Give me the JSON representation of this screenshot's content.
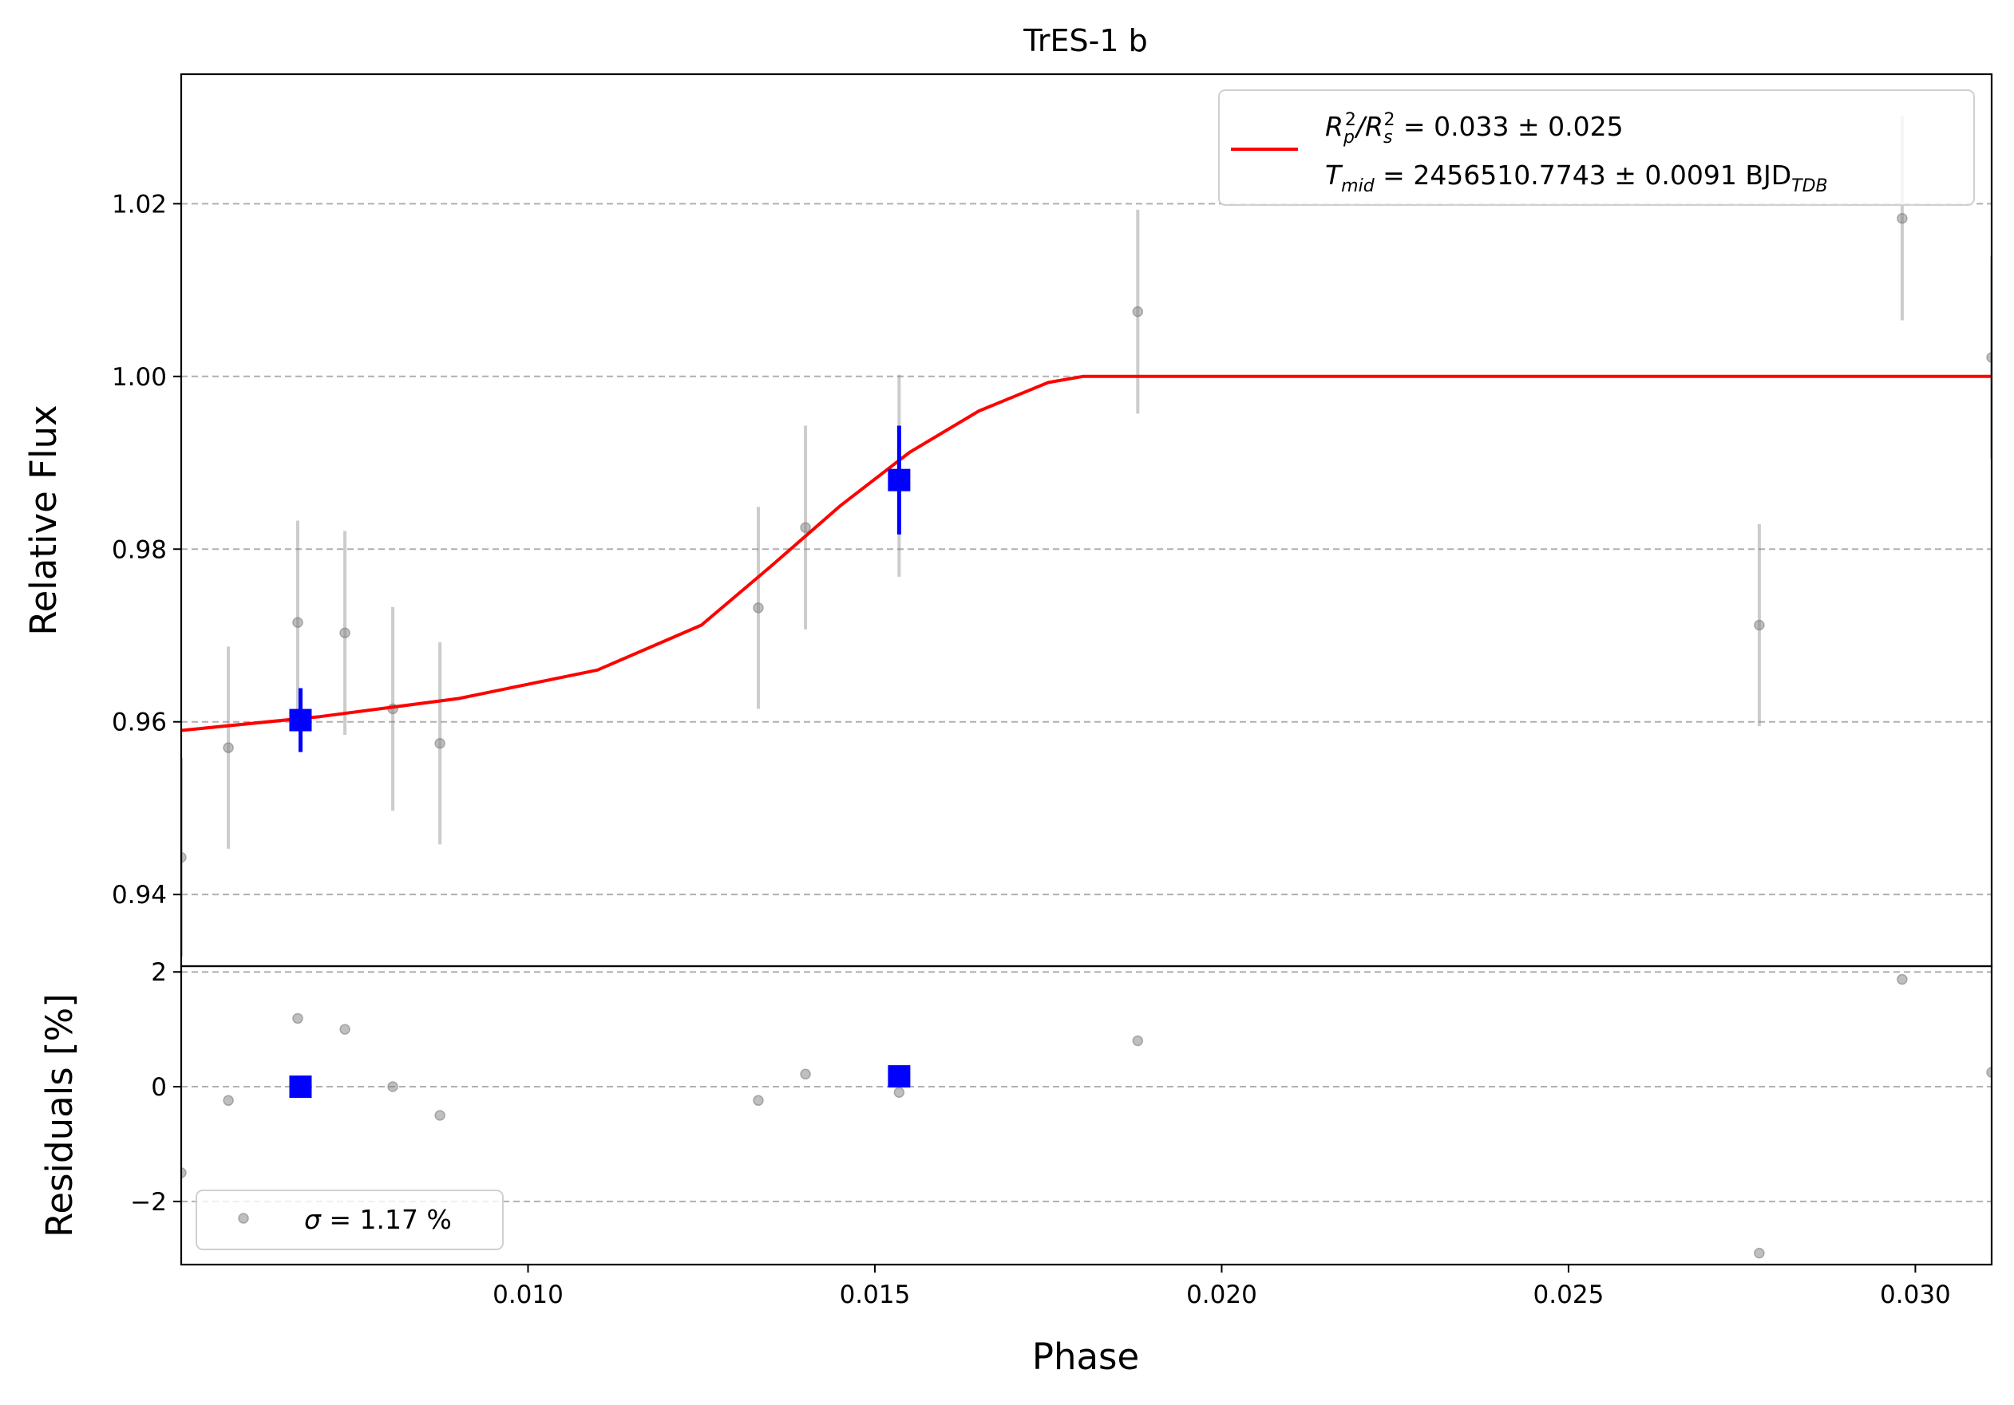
{
  "chart_data": {
    "type": "scatter",
    "title": "TrES-1 b",
    "xlabel": "Phase",
    "ylabel_top": "Relative Flux",
    "ylabel_bottom": "Residuals [%]",
    "xlim": [
      0.005,
      0.0311
    ],
    "ylim_top": [
      0.9317,
      1.035
    ],
    "ylim_bottom": [
      -3.1,
      2.1
    ],
    "grid": "horizontal dashed",
    "x_ticks": [
      {
        "value": 0.01,
        "label": "0.010"
      },
      {
        "value": 0.015,
        "label": "0.015"
      },
      {
        "value": 0.02,
        "label": "0.020"
      },
      {
        "value": 0.025,
        "label": "0.025"
      },
      {
        "value": 0.03,
        "label": "0.030"
      }
    ],
    "y_ticks_top": [
      {
        "value": 0.94,
        "label": "0.94"
      },
      {
        "value": 0.96,
        "label": "0.96"
      },
      {
        "value": 0.98,
        "label": "0.98"
      },
      {
        "value": 1.0,
        "label": "1.00"
      },
      {
        "value": 1.02,
        "label": "1.02"
      }
    ],
    "y_ticks_bottom": [
      {
        "value": -2,
        "label": "−2"
      },
      {
        "value": 0,
        "label": "0"
      },
      {
        "value": 2,
        "label": "2"
      }
    ],
    "colors": {
      "raw": "#808080",
      "binned": "#0000ff",
      "model": "#ff0000",
      "grid": "#b0b0b0"
    },
    "raw_points": [
      {
        "x": 0.005,
        "y": 0.9443,
        "err": 0.0115,
        "res": -1.5
      },
      {
        "x": 0.00568,
        "y": 0.957,
        "err": 0.0117,
        "res": -0.24
      },
      {
        "x": 0.00668,
        "y": 0.9715,
        "err": 0.0118,
        "res": 1.19
      },
      {
        "x": 0.00736,
        "y": 0.9703,
        "err": 0.0118,
        "res": 1.0
      },
      {
        "x": 0.00805,
        "y": 0.9615,
        "err": 0.0118,
        "res": 0.0
      },
      {
        "x": 0.00873,
        "y": 0.9575,
        "err": 0.0117,
        "res": -0.5
      },
      {
        "x": 0.01332,
        "y": 0.9732,
        "err": 0.0117,
        "res": -0.24
      },
      {
        "x": 0.014,
        "y": 0.9825,
        "err": 0.0118,
        "res": 0.22
      },
      {
        "x": 0.01535,
        "y": 0.9885,
        "err": 0.0117,
        "res": -0.1
      },
      {
        "x": 0.01879,
        "y": 1.0075,
        "err": 0.0118,
        "res": 0.8
      },
      {
        "x": 0.02775,
        "y": 0.9712,
        "err": 0.0117,
        "res": -2.9
      },
      {
        "x": 0.02981,
        "y": 1.0183,
        "err": 0.0118,
        "res": 1.87
      },
      {
        "x": 0.0311,
        "y": 1.0022,
        "err": 0.0117,
        "res": 0.25
      }
    ],
    "binned_points": [
      {
        "x": 0.00672,
        "y": 0.9602,
        "err": 0.0037,
        "res": 0.0
      },
      {
        "x": 0.01535,
        "y": 0.988,
        "err": 0.0063,
        "res": 0.18
      }
    ],
    "model_line": {
      "x": [
        0.005,
        0.007,
        0.009,
        0.011,
        0.0125,
        0.0135,
        0.0145,
        0.0155,
        0.0165,
        0.0175,
        0.018,
        0.0311
      ],
      "y": [
        0.959,
        0.9606,
        0.9627,
        0.966,
        0.9712,
        0.978,
        0.985,
        0.9912,
        0.996,
        0.9993,
        1.0,
        1.0
      ]
    },
    "legend_top": {
      "position": "upper right",
      "line1_main": "R",
      "line1_sub_a": "p",
      "line1_sup_a": "2",
      "line1_slash": "/R",
      "line1_sub_b": "s",
      "line1_sup_b": "2",
      "line1_value": " = 0.033 ± 0.025",
      "line2_main": "T",
      "line2_sub": "mid",
      "line2_value": " = 2456510.7743 ± 0.0091 BJD",
      "line2_unit_sub": "TDB"
    },
    "legend_bottom": {
      "position": "lower left",
      "symbol": "σ",
      "text": " = 1.17 %"
    }
  }
}
